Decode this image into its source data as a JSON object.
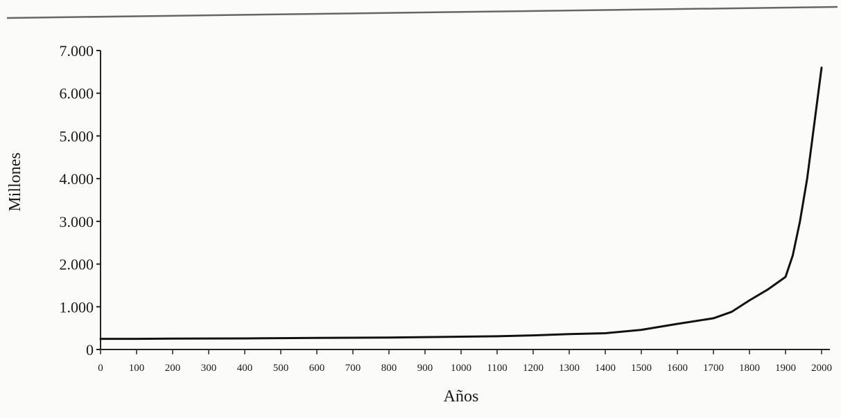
{
  "chart_data": {
    "type": "line",
    "title": "",
    "xlabel": "Años",
    "ylabel": "Millones",
    "xlim": [
      0,
      2000
    ],
    "ylim": [
      0,
      7000
    ],
    "x_ticks": [
      0,
      100,
      200,
      300,
      400,
      500,
      600,
      700,
      800,
      900,
      1000,
      1100,
      1200,
      1300,
      1400,
      1500,
      1600,
      1700,
      1800,
      1900,
      2000
    ],
    "x_tick_labels": [
      "0",
      "100",
      "200",
      "300",
      "400",
      "500",
      "600",
      "700",
      "800",
      "900",
      "1000",
      "1100",
      "1200",
      "1300",
      "1400",
      "1500",
      "1600",
      "1700",
      "1800",
      "1900",
      "2000"
    ],
    "y_ticks": [
      0,
      1000,
      2000,
      3000,
      4000,
      5000,
      6000,
      7000
    ],
    "y_tick_labels": [
      "0",
      "1.000",
      "2.000",
      "3.000",
      "4.000",
      "5.000",
      "6.000",
      "7.000"
    ],
    "grid": false,
    "legend": "none",
    "series": [
      {
        "x": [
          0,
          100,
          200,
          300,
          400,
          500,
          600,
          700,
          800,
          900,
          1000,
          1100,
          1200,
          1300,
          1400,
          1500,
          1600,
          1700,
          1750,
          1800,
          1850,
          1900,
          1920,
          1940,
          1960,
          1980,
          2000
        ],
        "values": [
          250,
          250,
          255,
          258,
          260,
          265,
          270,
          275,
          280,
          290,
          300,
          310,
          330,
          360,
          380,
          460,
          600,
          730,
          880,
          1150,
          1400,
          1700,
          2200,
          3000,
          4000,
          5300,
          6600
        ]
      }
    ],
    "colors": {
      "line": "#111111",
      "axis": "#222222",
      "rule": "#666666"
    }
  }
}
